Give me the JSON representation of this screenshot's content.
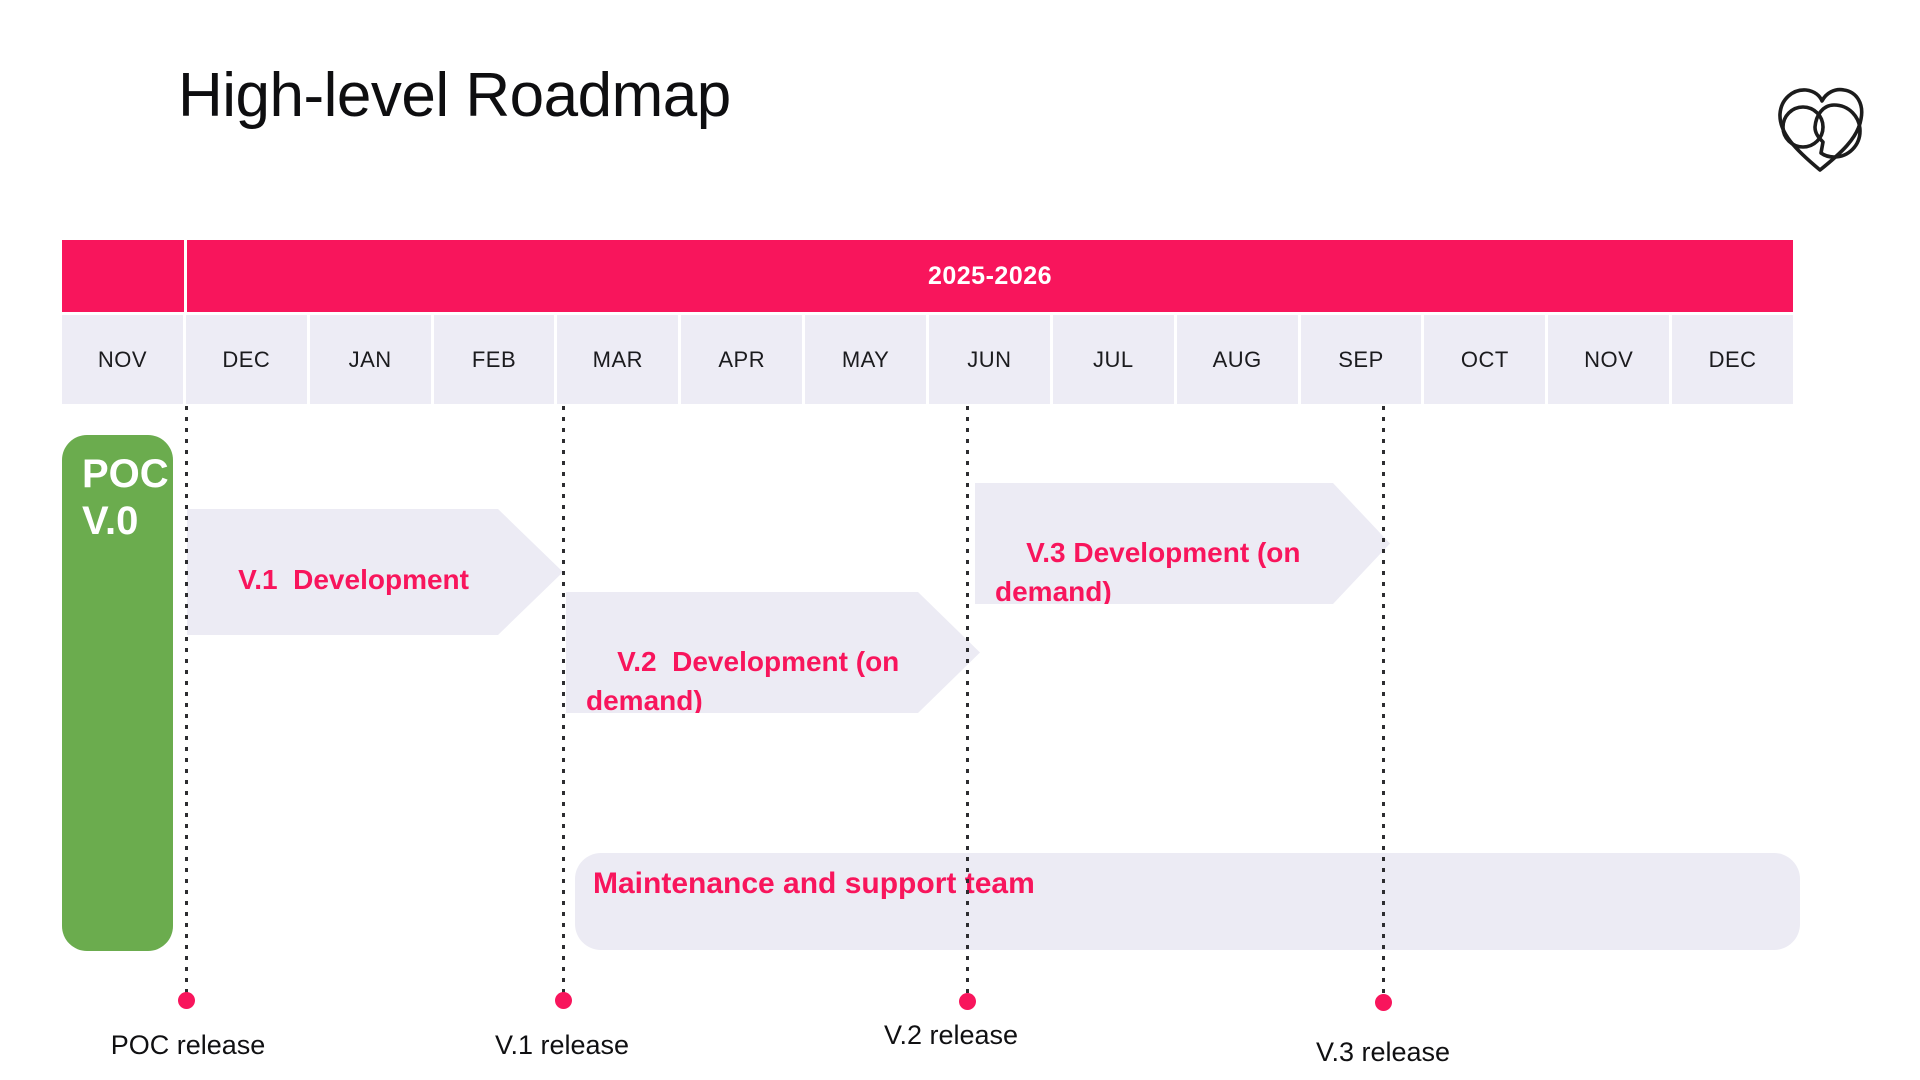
{
  "page": {
    "title": "High-level Roadmap"
  },
  "logo": {
    "name": "heart-rings-logo"
  },
  "timeline": {
    "year_label": "2025-2026",
    "months": [
      "NOV",
      "DEC",
      "JAN",
      "FEB",
      "MAR",
      "APR",
      "MAY",
      "JUN",
      "JUL",
      "AUG",
      "SEP",
      "OCT",
      "NOV",
      "DEC"
    ]
  },
  "poc_box": {
    "line1": "POC",
    "line2": "V.0"
  },
  "bars": {
    "v1": {
      "label": "V.1  Development"
    },
    "v2": {
      "label": "V.2  Development (on demand)"
    },
    "v3": {
      "label": "V.3 Development (on demand)"
    },
    "maintenance": {
      "label": "Maintenance and support team"
    }
  },
  "releases": [
    {
      "label": "POC release"
    },
    {
      "label": "V.1 release"
    },
    {
      "label": "V.2 release"
    },
    {
      "label": "V.3 release"
    }
  ],
  "colors": {
    "accent_pink": "#F8155C",
    "bar_lavender": "#ECEBF4",
    "month_lavender": "#EDECF5",
    "poc_green": "#6BAC4E"
  }
}
